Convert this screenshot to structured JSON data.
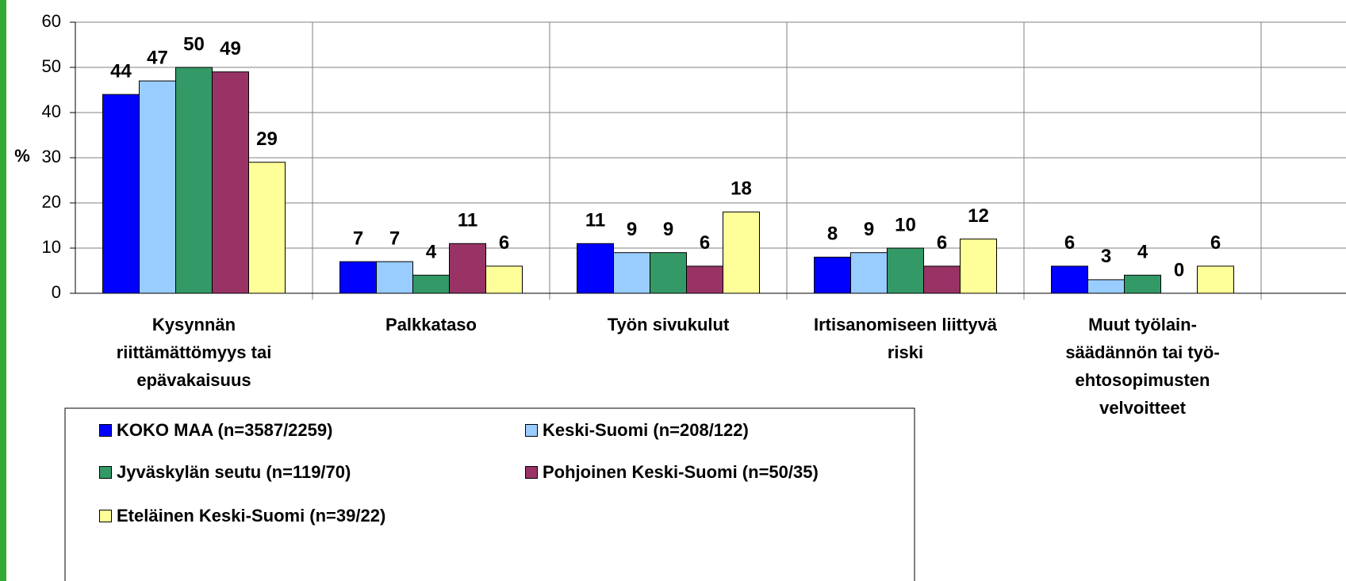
{
  "chart_data": {
    "type": "bar",
    "y_label": "%",
    "categories": [
      "Kysynnän\nriittämättömyys tai\nepävakaisuus",
      "Palkkataso",
      "Työn sivukulut",
      "Irtisanomiseen liittyvä\nriski",
      "Muut työlain-\nsäädännön tai työ-\nehtosopimusten\nvelvoitteet"
    ],
    "series": [
      {
        "name": "KOKO MAA (n=3587/2259)",
        "color": "#0000ff",
        "values": [
          44,
          7,
          11,
          8,
          6
        ]
      },
      {
        "name": "Keski-Suomi (n=208/122)",
        "color": "#99ccff",
        "values": [
          47,
          7,
          9,
          9,
          3
        ]
      },
      {
        "name": "Jyväskylän seutu (n=119/70)",
        "color": "#339966",
        "values": [
          50,
          4,
          9,
          10,
          4
        ]
      },
      {
        "name": "Pohjoinen Keski-Suomi (n=50/35)",
        "color": "#993366",
        "values": [
          49,
          11,
          6,
          6,
          0
        ]
      },
      {
        "name": "Eteläinen Keski-Suomi (n=39/22)",
        "color": "#ffff99",
        "values": [
          29,
          6,
          18,
          12,
          6
        ]
      }
    ],
    "ylim": [
      0,
      60
    ],
    "yticks": [
      0,
      10,
      20,
      30,
      40,
      50,
      60
    ],
    "grid": true
  }
}
